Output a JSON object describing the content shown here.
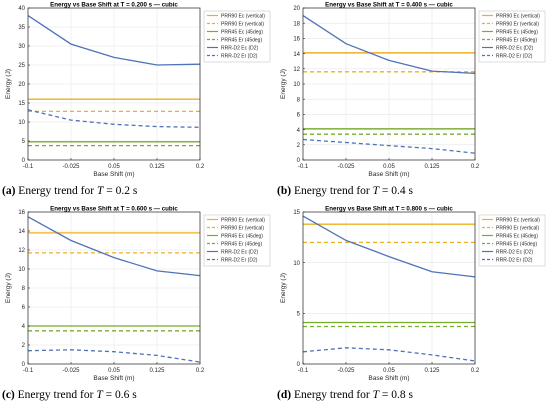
{
  "chart_data": [
    {
      "type": "line",
      "title": "Energy vs Base Shift at T = 0.200 s — cubic",
      "xlabel": "Base Shift (m)",
      "ylabel": "Energy (J)",
      "x": [
        -0.1,
        -0.025,
        0.05,
        0.125,
        0.2
      ],
      "xticks": [
        "-0.1",
        "-0.025",
        "0.05",
        "0.125",
        "0.2"
      ],
      "xlim": [
        -0.1,
        0.2
      ],
      "ylim": [
        0,
        40
      ],
      "yticks": [
        "0",
        "5",
        "10",
        "15",
        "20",
        "25",
        "30",
        "35",
        "40"
      ],
      "grid": true,
      "legend_position": "top-right",
      "series": [
        {
          "name": "PRR90 Ec (vertical)",
          "values": [
            16,
            16,
            16,
            16,
            16
          ]
        },
        {
          "name": "PRR90 Er (vertical)",
          "values": [
            12.8,
            12.8,
            12.8,
            12.8,
            12.8
          ]
        },
        {
          "name": "PRR45 Ec (45deg)",
          "values": [
            4.8,
            4.8,
            4.8,
            4.8,
            4.8
          ]
        },
        {
          "name": "PRR45 Er (45deg)",
          "values": [
            3.8,
            3.8,
            3.8,
            3.8,
            3.8
          ]
        },
        {
          "name": "RRR-D2 Ec (D2)",
          "values": [
            38,
            30.5,
            27,
            25,
            25.2
          ]
        },
        {
          "name": "RRR-D2 Er (D2)",
          "values": [
            13.2,
            10.5,
            9.4,
            8.8,
            8.6
          ]
        }
      ],
      "caption": {
        "label": "(a)",
        "text_before": "Energy trend for",
        "var": "T",
        "text_after": "= 0.2 s"
      }
    },
    {
      "type": "line",
      "title": "Energy vs Base Shift at T = 0.400 s — cubic",
      "xlabel": "Base Shift (m)",
      "ylabel": "Energy (J)",
      "x": [
        -0.1,
        -0.025,
        0.05,
        0.125,
        0.2
      ],
      "xticks": [
        "-0.1",
        "-0.025",
        "0.05",
        "0.125",
        "0.2"
      ],
      "xlim": [
        -0.1,
        0.2
      ],
      "ylim": [
        0,
        20
      ],
      "yticks": [
        "0",
        "2",
        "4",
        "6",
        "8",
        "10",
        "12",
        "14",
        "16",
        "18",
        "20"
      ],
      "grid": true,
      "legend_position": "top-right",
      "series": [
        {
          "name": "PRR90 Ec (vertical)",
          "values": [
            14.1,
            14.1,
            14.1,
            14.1,
            14.1
          ]
        },
        {
          "name": "PRR90 Er (vertical)",
          "values": [
            11.6,
            11.6,
            11.6,
            11.6,
            11.6
          ]
        },
        {
          "name": "PRR45 Ec (45deg)",
          "values": [
            4.1,
            4.1,
            4.1,
            4.1,
            4.1
          ]
        },
        {
          "name": "PRR45 Er (45deg)",
          "values": [
            3.4,
            3.4,
            3.4,
            3.4,
            3.4
          ]
        },
        {
          "name": "RRR-D2 Ec (D2)",
          "values": [
            19,
            15.3,
            13.1,
            11.7,
            11.4
          ]
        },
        {
          "name": "RRR-D2 Er (D2)",
          "values": [
            2.7,
            2.3,
            1.9,
            1.5,
            0.9
          ]
        }
      ],
      "caption": {
        "label": "(b)",
        "text_before": "Energy trend for",
        "var": "T",
        "text_after": "= 0.4 s"
      }
    },
    {
      "type": "line",
      "title": "Energy vs Base Shift at T = 0.600 s — cubic",
      "xlabel": "Base Shift (m)",
      "ylabel": "Energy (J)",
      "x": [
        -0.1,
        -0.025,
        0.05,
        0.125,
        0.2
      ],
      "xticks": [
        "-0.1",
        "-0.025",
        "0.05",
        "0.125",
        "0.2"
      ],
      "xlim": [
        -0.1,
        0.2
      ],
      "ylim": [
        0,
        16
      ],
      "yticks": [
        "0",
        "2",
        "4",
        "6",
        "8",
        "10",
        "12",
        "14",
        "16"
      ],
      "grid": true,
      "legend_position": "top-right",
      "series": [
        {
          "name": "PRR90 Ec (vertical)",
          "values": [
            13.8,
            13.8,
            13.8,
            13.8,
            13.8
          ]
        },
        {
          "name": "PRR90 Er (vertical)",
          "values": [
            11.7,
            11.7,
            11.7,
            11.7,
            11.7
          ]
        },
        {
          "name": "PRR45 Ec (45deg)",
          "values": [
            4,
            4,
            4,
            4,
            4
          ]
        },
        {
          "name": "PRR45 Er (45deg)",
          "values": [
            3.5,
            3.5,
            3.5,
            3.5,
            3.5
          ]
        },
        {
          "name": "RRR-D2 Ec (D2)",
          "values": [
            15.5,
            13,
            11.2,
            9.8,
            9.3
          ]
        },
        {
          "name": "RRR-D2 Er (D2)",
          "values": [
            1.4,
            1.5,
            1.3,
            0.9,
            0.2
          ]
        }
      ],
      "caption": {
        "label": "(c)",
        "text_before": "Energy trend for",
        "var": "T",
        "text_after": "= 0.6 s"
      }
    },
    {
      "type": "line",
      "title": "Energy vs Base Shift at T = 0.800 s — cubic",
      "xlabel": "Base Shift (m)",
      "ylabel": "Energy (J)",
      "x": [
        -0.1,
        -0.025,
        0.05,
        0.125,
        0.2
      ],
      "xticks": [
        "-0.1",
        "-0.025",
        "0.05",
        "0.125",
        "0.2"
      ],
      "xlim": [
        -0.1,
        0.2
      ],
      "ylim": [
        0,
        15
      ],
      "yticks": [
        "0",
        "5",
        "10",
        "15"
      ],
      "grid": true,
      "legend_position": "top-right",
      "series": [
        {
          "name": "PRR90 Ec (vertical)",
          "values": [
            13.8,
            13.8,
            13.8,
            13.8,
            13.8
          ]
        },
        {
          "name": "PRR90 Er (vertical)",
          "values": [
            12,
            12,
            12,
            12,
            12
          ]
        },
        {
          "name": "PRR45 Ec (45deg)",
          "values": [
            4.1,
            4.1,
            4.1,
            4.1,
            4.1
          ]
        },
        {
          "name": "PRR45 Er (45deg)",
          "values": [
            3.7,
            3.7,
            3.7,
            3.7,
            3.7
          ]
        },
        {
          "name": "RRR-D2 Ec (D2)",
          "values": [
            14.6,
            12.2,
            10.6,
            9.1,
            8.6
          ]
        },
        {
          "name": "RRR-D2 Er (D2)",
          "values": [
            1.2,
            1.6,
            1.4,
            0.9,
            0.3
          ]
        }
      ],
      "caption": {
        "label": "(d)",
        "text_before": "Energy trend for",
        "var": "T",
        "text_after": "= 0.8 s"
      }
    }
  ],
  "style": {
    "series_colors": [
      "#EDB120",
      "#EDB120",
      "#77AC30",
      "#77AC30",
      "#4F73B8",
      "#4F73B8"
    ],
    "series_dashed": [
      false,
      true,
      false,
      true,
      false,
      true
    ],
    "axis_color": "#262626",
    "grid_color": "#e6e6e6"
  }
}
